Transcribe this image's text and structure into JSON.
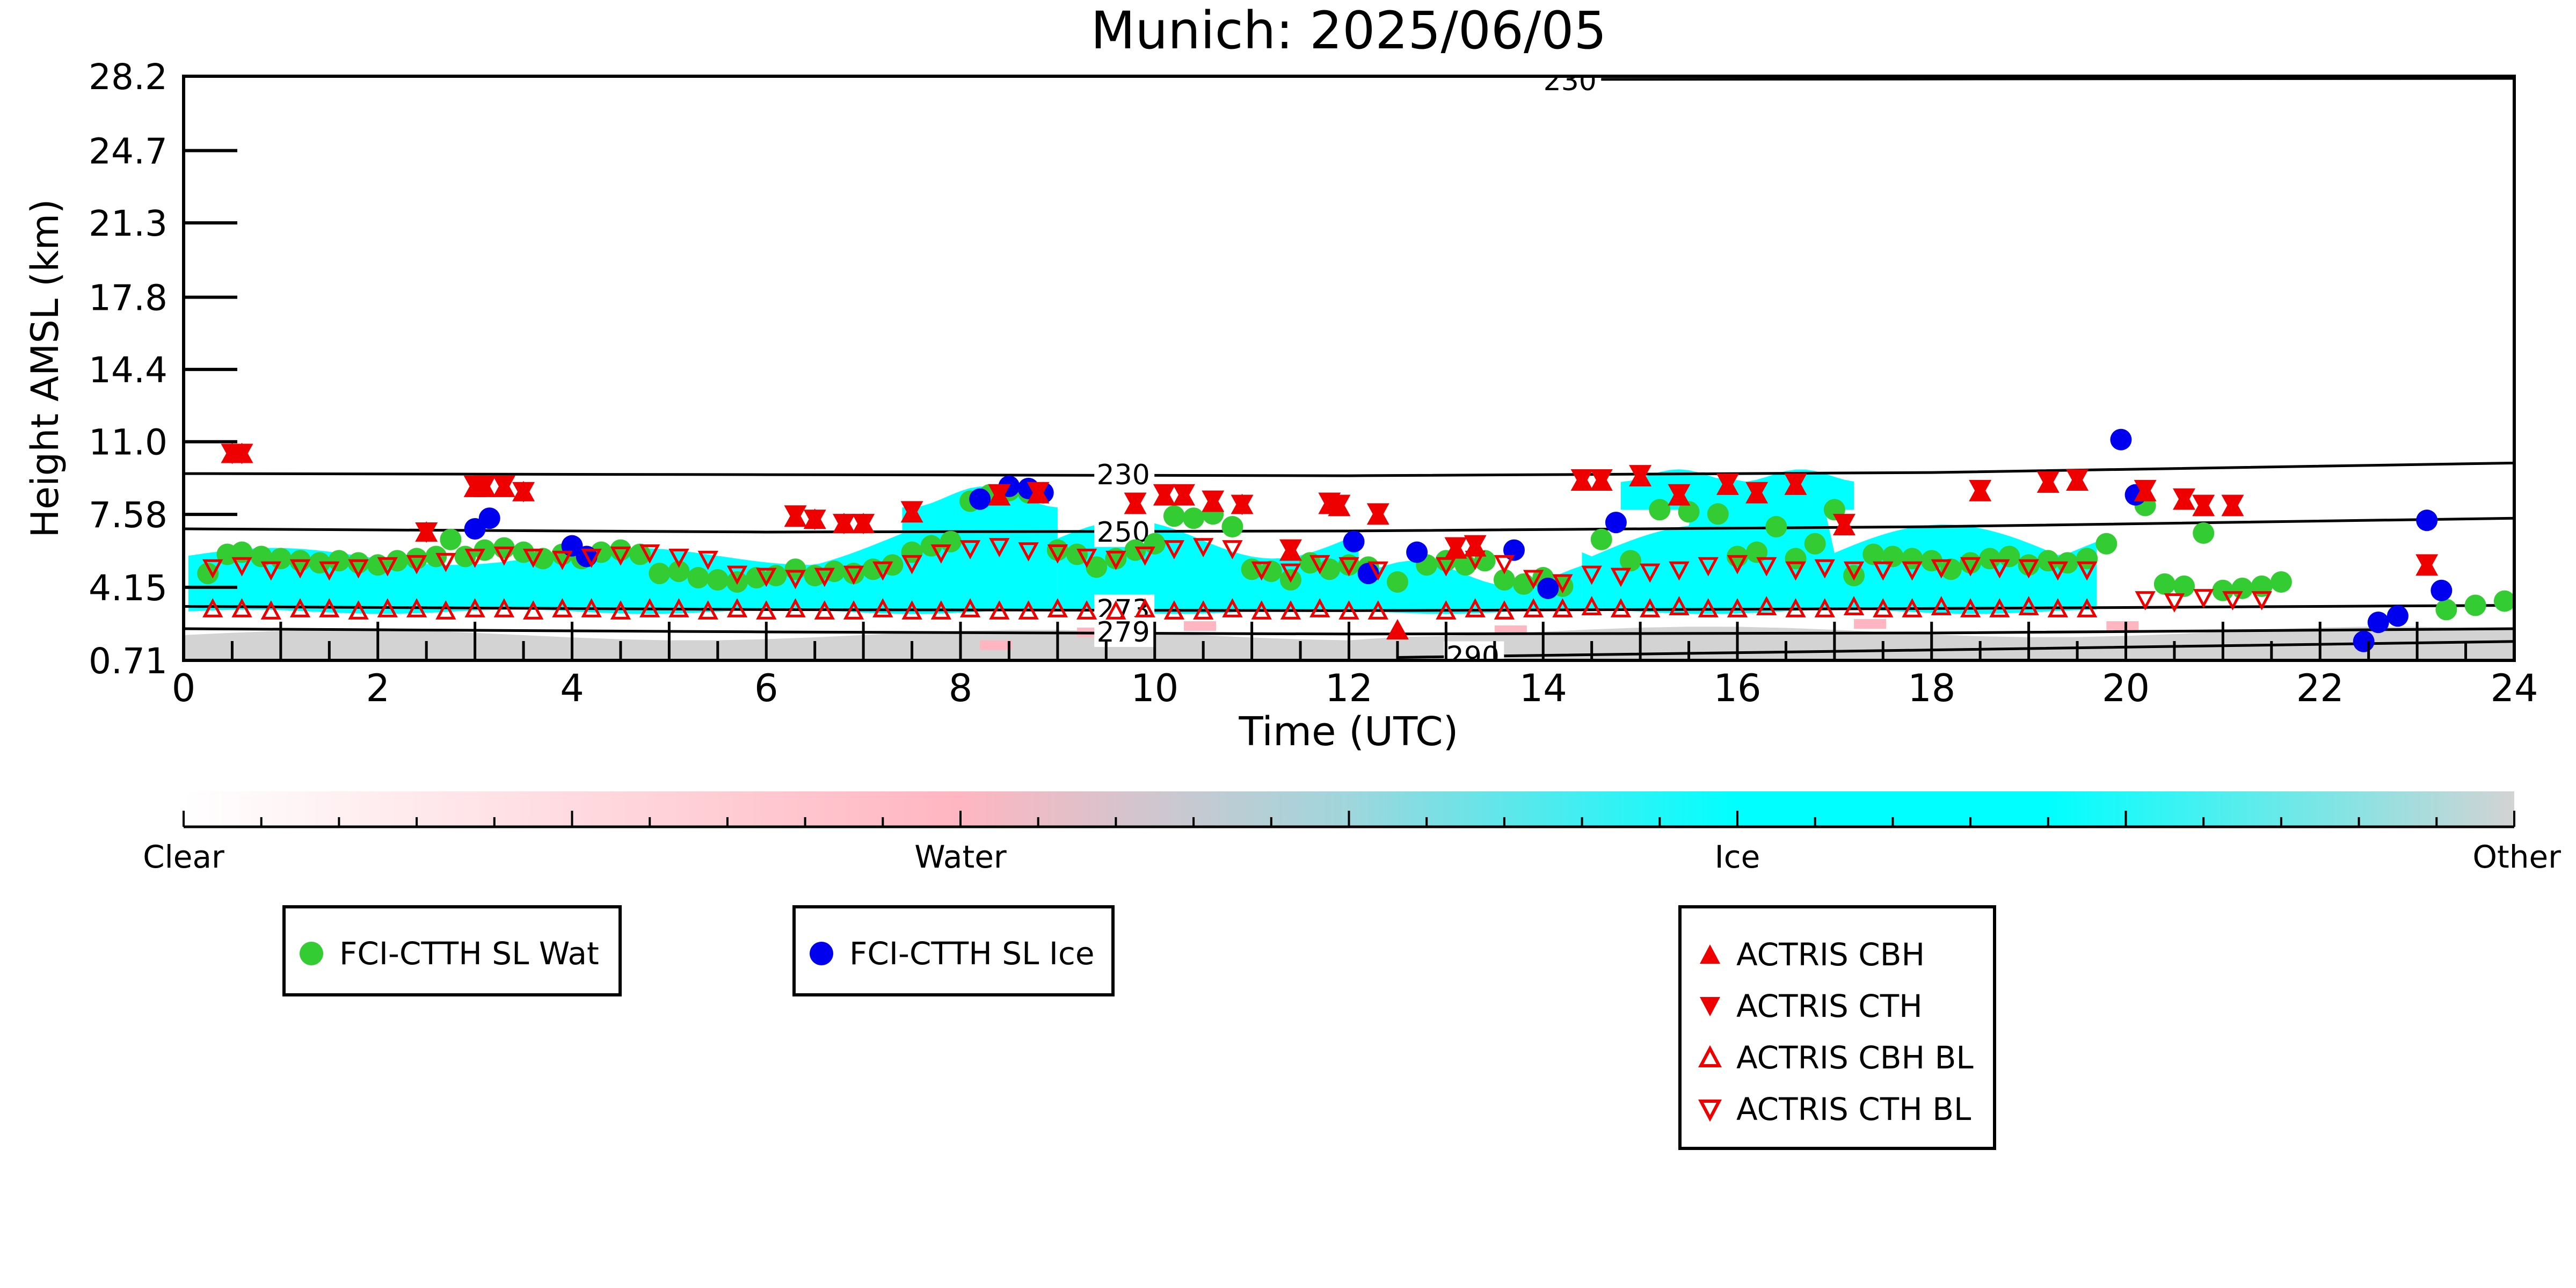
{
  "chart_data": {
    "type": "scatter",
    "title": "Munich: 2025/06/05",
    "xlabel": "Time (UTC)",
    "ylabel": "Height AMSL (km)",
    "xlim": [
      0,
      24
    ],
    "ylim": [
      0.71,
      28.2
    ],
    "x_ticks": [
      "0",
      "2",
      "4",
      "6",
      "8",
      "10",
      "12",
      "14",
      "16",
      "18",
      "20",
      "22",
      "24"
    ],
    "y_ticks": [
      "0.71",
      "4.15",
      "7.58",
      "11.0",
      "14.4",
      "17.8",
      "21.3",
      "24.7",
      "28.2"
    ],
    "y_tick_values": [
      0.71,
      4.15,
      7.58,
      11.0,
      14.4,
      17.8,
      21.3,
      24.7,
      28.2
    ],
    "colors": {
      "water_sat": "#33cc33",
      "ice_sat": "#0000ee",
      "actris": "#ee0000",
      "ice_class": "#00ffff",
      "other_class": "#d3d3d3",
      "water_class": "#ffb6c1"
    },
    "isotherms": [
      {
        "label": "230",
        "x": [
          0,
          6,
          12,
          18,
          24
        ],
        "y": [
          9.5,
          9.45,
          9.4,
          9.55,
          10.0
        ]
      },
      {
        "label": "250",
        "x": [
          0,
          6,
          12,
          18,
          24
        ],
        "y": [
          6.9,
          6.75,
          6.8,
          7.0,
          7.4
        ]
      },
      {
        "label": "273",
        "x": [
          0,
          6,
          12,
          18,
          24
        ],
        "y": [
          3.25,
          3.1,
          3.05,
          3.15,
          3.3
        ]
      },
      {
        "label": "279",
        "x": [
          0,
          6,
          12,
          18,
          24
        ],
        "y": [
          2.2,
          2.05,
          1.95,
          2.0,
          2.2
        ]
      },
      {
        "label": "290",
        "x": [
          12.5,
          18,
          24
        ],
        "y": [
          0.85,
          1.2,
          1.6
        ]
      },
      {
        "label": "230",
        "x": [
          14,
          24
        ],
        "y": [
          28.05,
          28.1
        ]
      }
    ],
    "isotherm_labels": [
      {
        "text": "230",
        "x": 9.4,
        "y": 9.45
      },
      {
        "text": "250",
        "x": 9.4,
        "y": 6.75
      },
      {
        "text": "273",
        "x": 9.4,
        "y": 3.1
      },
      {
        "text": "279",
        "x": 9.4,
        "y": 2.05
      },
      {
        "text": "290",
        "x": 13.0,
        "y": 0.9
      },
      {
        "text": "230",
        "x": 14.0,
        "y": 28.0
      }
    ],
    "series": [
      {
        "name": "FCI-CTTH SL Wat",
        "marker": "circle-filled",
        "x": [
          0.25,
          0.45,
          0.6,
          0.8,
          1.0,
          1.2,
          1.4,
          1.6,
          1.8,
          2.0,
          2.2,
          2.4,
          2.6,
          2.75,
          2.9,
          3.1,
          3.3,
          3.5,
          3.7,
          3.9,
          4.1,
          4.3,
          4.5,
          4.7,
          4.9,
          5.1,
          5.3,
          5.5,
          5.7,
          5.9,
          6.1,
          6.3,
          6.5,
          6.7,
          6.9,
          7.1,
          7.3,
          7.5,
          7.7,
          7.9,
          8.1,
          8.3,
          8.5,
          8.7,
          9.0,
          9.2,
          9.4,
          9.6,
          9.8,
          10.0,
          10.2,
          10.4,
          10.6,
          10.8,
          11.0,
          11.2,
          11.4,
          11.6,
          11.8,
          12.0,
          12.2,
          12.5,
          12.8,
          13.0,
          13.2,
          13.4,
          13.6,
          13.8,
          14.0,
          14.2,
          14.6,
          14.9,
          15.2,
          15.5,
          15.8,
          16.0,
          16.2,
          16.4,
          16.6,
          16.8,
          17.0,
          17.2,
          17.4,
          17.6,
          17.8,
          18.0,
          18.2,
          18.4,
          18.6,
          18.8,
          19.0,
          19.2,
          19.4,
          19.6,
          19.8,
          20.2,
          20.4,
          20.6,
          20.8,
          21.0,
          21.2,
          21.4,
          21.6,
          23.3,
          23.6,
          23.9
        ],
        "y": [
          4.8,
          5.7,
          5.8,
          5.6,
          5.5,
          5.4,
          5.3,
          5.4,
          5.3,
          5.2,
          5.4,
          5.5,
          5.6,
          6.4,
          5.6,
          5.9,
          6.0,
          5.8,
          5.5,
          5.7,
          5.5,
          5.8,
          5.9,
          5.7,
          4.8,
          4.9,
          4.6,
          4.5,
          4.4,
          4.6,
          4.7,
          5.0,
          4.7,
          4.9,
          4.8,
          5.0,
          5.2,
          5.8,
          6.1,
          6.3,
          8.2,
          8.5,
          8.7,
          8.6,
          5.9,
          5.7,
          5.1,
          5.5,
          5.9,
          6.2,
          7.5,
          7.4,
          7.6,
          7.0,
          5.0,
          4.9,
          4.5,
          5.3,
          5.0,
          5.2,
          5.1,
          4.4,
          5.2,
          5.4,
          5.2,
          5.4,
          4.5,
          4.3,
          4.6,
          4.2,
          6.4,
          5.4,
          7.8,
          7.7,
          7.6,
          5.6,
          5.8,
          7.0,
          5.5,
          6.2,
          7.8,
          4.7,
          5.7,
          5.6,
          5.5,
          5.4,
          5.0,
          5.3,
          5.5,
          5.6,
          5.2,
          5.4,
          5.3,
          5.5,
          6.2,
          8.0,
          4.3,
          4.2,
          6.7,
          4.0,
          4.1,
          4.2,
          4.4,
          3.1,
          3.3,
          3.5
        ],
        "color": "#33cc33"
      },
      {
        "name": "FCI-CTTH SL Ice",
        "marker": "circle-filled",
        "x": [
          3.0,
          3.15,
          4.0,
          4.15,
          8.2,
          8.5,
          8.7,
          8.85,
          12.05,
          12.2,
          12.7,
          13.7,
          14.05,
          14.75,
          19.95,
          20.1,
          22.45,
          22.6,
          22.8,
          23.1,
          23.25
        ],
        "y": [
          6.9,
          7.4,
          6.1,
          5.6,
          8.3,
          8.9,
          8.8,
          8.6,
          6.3,
          4.8,
          5.8,
          5.9,
          4.1,
          7.2,
          11.1,
          8.5,
          1.6,
          2.5,
          2.8,
          7.3,
          4.0
        ],
        "color": "#0000ee"
      },
      {
        "name": "ACTRIS CBH",
        "marker": "triangle-up-filled",
        "x": [
          0.5,
          0.6,
          2.5,
          3.0,
          3.1,
          3.3,
          3.5,
          6.3,
          6.5,
          6.8,
          7.0,
          7.5,
          8.4,
          8.8,
          9.8,
          10.1,
          10.3,
          10.6,
          10.9,
          11.4,
          11.8,
          11.9,
          12.3,
          12.5,
          13.1,
          13.3,
          14.4,
          14.6,
          15.0,
          15.4,
          15.9,
          16.2,
          16.6,
          17.1,
          18.5,
          19.2,
          19.5,
          20.2,
          20.6,
          20.8,
          21.1,
          23.1
        ],
        "y": [
          10.4,
          10.4,
          6.7,
          8.8,
          8.8,
          8.8,
          8.6,
          7.4,
          7.3,
          7.1,
          7.1,
          7.6,
          8.4,
          8.5,
          8.0,
          8.4,
          8.4,
          8.1,
          8.0,
          5.8,
          8.0,
          7.9,
          7.5,
          2.1,
          5.9,
          6.0,
          9.1,
          9.1,
          9.3,
          8.4,
          8.9,
          8.5,
          8.9,
          7.0,
          8.6,
          9.0,
          9.1,
          8.6,
          8.2,
          7.9,
          7.9,
          5.1
        ],
        "color": "#ee0000"
      },
      {
        "name": "ACTRIS CTH",
        "marker": "triangle-down-filled",
        "x": [
          0.5,
          0.6,
          2.5,
          3.0,
          3.1,
          3.3,
          3.5,
          6.3,
          6.5,
          6.8,
          7.0,
          7.5,
          8.4,
          8.8,
          9.8,
          10.1,
          10.3,
          10.6,
          10.9,
          11.4,
          11.8,
          11.9,
          12.3,
          13.1,
          13.3,
          14.4,
          14.6,
          15.0,
          15.4,
          15.9,
          16.2,
          16.6,
          17.1,
          18.5,
          19.2,
          19.5,
          20.2,
          20.6,
          20.8,
          21.1,
          23.1
        ],
        "y": [
          10.5,
          10.5,
          6.8,
          9.0,
          9.0,
          9.0,
          8.7,
          7.6,
          7.4,
          7.2,
          7.2,
          7.8,
          8.6,
          8.7,
          8.2,
          8.6,
          8.6,
          8.3,
          8.1,
          6.0,
          8.2,
          8.1,
          7.7,
          6.1,
          6.2,
          9.3,
          9.3,
          9.5,
          8.6,
          9.1,
          8.7,
          9.1,
          7.2,
          8.8,
          9.2,
          9.3,
          8.8,
          8.4,
          8.1,
          8.1,
          5.3
        ],
        "color": "#ee0000"
      },
      {
        "name": "ACTRIS CBH BL",
        "marker": "triangle-up-open",
        "x": [
          0.3,
          0.6,
          0.9,
          1.2,
          1.5,
          1.8,
          2.1,
          2.4,
          2.7,
          3.0,
          3.3,
          3.6,
          3.9,
          4.2,
          4.5,
          4.8,
          5.1,
          5.4,
          5.7,
          6.0,
          6.3,
          6.6,
          6.9,
          7.2,
          7.5,
          7.8,
          8.1,
          8.4,
          8.7,
          9.0,
          9.3,
          9.6,
          9.9,
          10.2,
          10.5,
          10.8,
          11.1,
          11.4,
          11.7,
          12.0,
          12.3,
          13.0,
          13.3,
          13.6,
          13.9,
          14.2,
          14.5,
          14.8,
          15.1,
          15.4,
          15.7,
          16.0,
          16.3,
          16.6,
          16.9,
          17.2,
          17.5,
          17.8,
          18.1,
          18.4,
          18.7,
          19.0,
          19.3,
          19.6
        ],
        "y": [
          3.1,
          3.1,
          3.0,
          3.1,
          3.1,
          3.0,
          3.1,
          3.1,
          3.0,
          3.1,
          3.1,
          3.0,
          3.1,
          3.1,
          3.0,
          3.1,
          3.1,
          3.0,
          3.1,
          3.0,
          3.1,
          3.0,
          3.0,
          3.1,
          3.0,
          3.0,
          3.1,
          3.0,
          3.0,
          3.1,
          3.0,
          3.0,
          3.1,
          3.0,
          3.0,
          3.1,
          3.0,
          3.0,
          3.1,
          3.0,
          3.0,
          3.0,
          3.1,
          3.0,
          3.1,
          3.1,
          3.2,
          3.1,
          3.1,
          3.2,
          3.1,
          3.1,
          3.2,
          3.1,
          3.1,
          3.2,
          3.1,
          3.1,
          3.2,
          3.1,
          3.1,
          3.2,
          3.1,
          3.1
        ],
        "color": "#ee0000"
      },
      {
        "name": "ACTRIS CTH BL",
        "marker": "triangle-down-open",
        "x": [
          0.3,
          0.6,
          0.9,
          1.2,
          1.5,
          1.8,
          2.1,
          2.4,
          2.7,
          3.0,
          3.3,
          3.6,
          3.9,
          4.2,
          4.5,
          4.8,
          5.1,
          5.4,
          5.7,
          6.0,
          6.3,
          6.6,
          6.9,
          7.2,
          7.5,
          7.8,
          8.1,
          8.4,
          8.7,
          9.0,
          9.3,
          9.6,
          9.9,
          10.2,
          10.5,
          10.8,
          11.1,
          11.4,
          11.7,
          12.0,
          12.3,
          13.0,
          13.3,
          13.6,
          13.9,
          14.2,
          14.5,
          14.8,
          15.1,
          15.4,
          15.7,
          16.0,
          16.3,
          16.6,
          16.9,
          17.2,
          17.5,
          17.8,
          18.1,
          18.4,
          18.7,
          19.0,
          19.3,
          19.6,
          20.2,
          20.5,
          20.8,
          21.1,
          21.4
        ],
        "y": [
          5.1,
          5.2,
          5.0,
          5.1,
          5.0,
          5.1,
          5.2,
          5.3,
          5.4,
          5.6,
          5.7,
          5.6,
          5.5,
          5.6,
          5.7,
          5.8,
          5.6,
          5.5,
          4.8,
          4.7,
          4.6,
          4.7,
          4.8,
          5.0,
          5.3,
          5.8,
          6.0,
          6.1,
          5.9,
          5.8,
          5.6,
          5.5,
          5.7,
          6.0,
          6.1,
          6.0,
          5.0,
          4.9,
          5.3,
          5.2,
          5.0,
          5.2,
          5.5,
          5.3,
          4.6,
          4.4,
          4.8,
          4.7,
          4.9,
          5.0,
          5.2,
          5.3,
          5.2,
          5.0,
          5.1,
          5.0,
          5.0,
          5.0,
          5.1,
          5.2,
          5.1,
          5.1,
          5.0,
          5.0,
          3.6,
          3.5,
          3.7,
          3.6,
          3.6
        ],
        "color": "#ee0000"
      }
    ],
    "colorbar": {
      "labels": [
        "Clear",
        "Water",
        "Ice",
        "Other"
      ],
      "positions": [
        0,
        1,
        2,
        3
      ]
    },
    "legend_placement": "below-plot"
  }
}
